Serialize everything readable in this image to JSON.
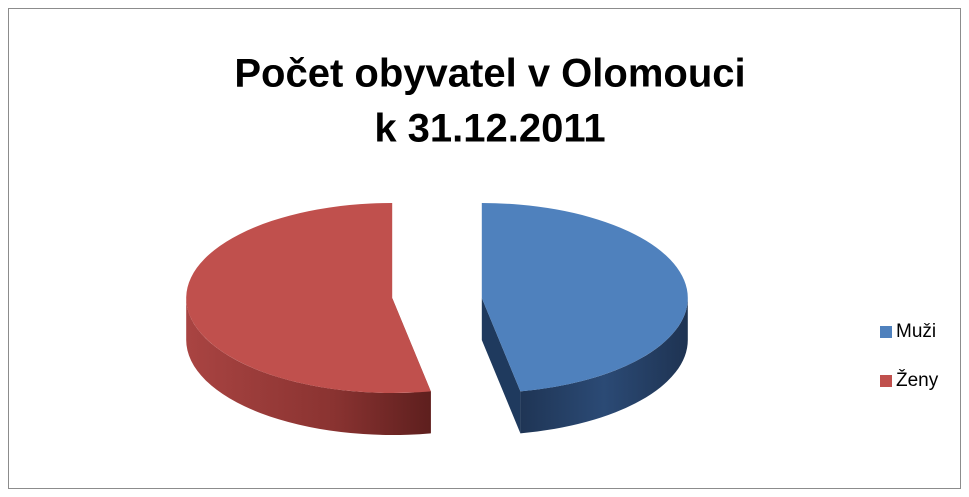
{
  "chart_data": {
    "type": "pie",
    "title": [
      "Počet obyvatel v Olomouci",
      "k 31.12.2011"
    ],
    "categories": [
      "Muži",
      "Ženy"
    ],
    "values": [
      47,
      53
    ],
    "colors": [
      "#4f81bd",
      "#c0504d"
    ],
    "legend": "right"
  }
}
